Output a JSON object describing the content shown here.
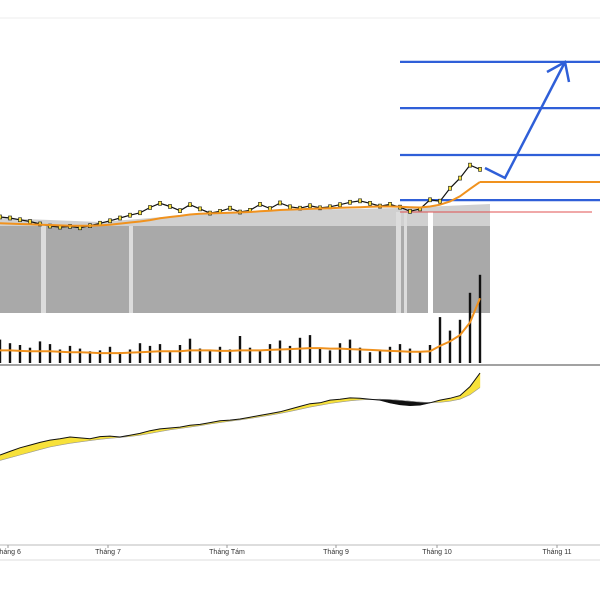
{
  "chart_data": [
    {
      "type": "line",
      "x": [
        0,
        2,
        4,
        6,
        8,
        10,
        12,
        14,
        16,
        18,
        20,
        22,
        24,
        26,
        28,
        30,
        32,
        34,
        36,
        38,
        40,
        42,
        44,
        46,
        48,
        50,
        52,
        54,
        56,
        58,
        60,
        62,
        64,
        66,
        68,
        70,
        72,
        74,
        76,
        78,
        80,
        82,
        84,
        86,
        88,
        90,
        92,
        94,
        96
      ],
      "xlim": [
        0,
        120
      ],
      "ylim": [
        0,
        100
      ],
      "series": [
        {
          "color": "#111111",
          "values": [
            42.3,
            42,
            41.5,
            41,
            40.3,
            39.7,
            39.4,
            39.6,
            39.2,
            39.8,
            40.5,
            41.2,
            42,
            42.8,
            43.5,
            45,
            46.2,
            45.3,
            44.1,
            45.8,
            44.6,
            43.4,
            43.9,
            44.8,
            43.7,
            44.2,
            45.9,
            44.7,
            46.3,
            45.2,
            44.8,
            45.5,
            44.9,
            45.2,
            45.8,
            46.5,
            46.9,
            46.2,
            45.4,
            45.9,
            45.1,
            43.9,
            44.6,
            47.2,
            46.8,
            50.5,
            53.4,
            57.1,
            55.9
          ]
        },
        {
          "color": "#f0921e",
          "values": [
            40.5,
            40.4,
            40.3,
            40.2,
            40.1,
            40,
            39.9,
            39.8,
            39.8,
            39.8,
            39.9,
            40.1,
            40.4,
            40.7,
            41,
            41.4,
            41.9,
            42.3,
            42.6,
            43,
            43.2,
            43.3,
            43.4,
            43.5,
            43.6,
            43.7,
            43.9,
            44.1,
            44.3,
            44.4,
            44.5,
            44.6,
            44.7,
            44.8,
            44.9,
            45,
            45.1,
            45.2,
            45.3,
            45.3,
            45.2,
            45.1,
            45,
            45.3,
            45.8,
            46.7,
            48.2,
            50.3,
            52.3
          ]
        }
      ],
      "levels": [
        {
          "value": 86.6,
          "color": "#2f5fd8"
        },
        {
          "value": 73.4,
          "color": "#2f5fd8"
        },
        {
          "value": 60,
          "color": "#2f5fd8"
        },
        {
          "value": 47.1,
          "color": "#2f5fd8"
        },
        {
          "value": 43.7,
          "color": "#e05050"
        }
      ]
    },
    {
      "type": "bar",
      "x": [
        0,
        2,
        4,
        6,
        8,
        10,
        12,
        14,
        16,
        18,
        20,
        22,
        24,
        26,
        28,
        30,
        32,
        34,
        36,
        38,
        40,
        42,
        44,
        46,
        48,
        50,
        52,
        54,
        56,
        58,
        60,
        62,
        64,
        66,
        68,
        70,
        72,
        74,
        76,
        78,
        80,
        82,
        84,
        86,
        88,
        90,
        92,
        94,
        96
      ],
      "xlim": [
        0,
        120
      ],
      "ylim": [
        0,
        100
      ],
      "series": [
        {
          "color": "#111111",
          "values": [
            26,
            22,
            20,
            17,
            24,
            21,
            15,
            19,
            16,
            13,
            14,
            18,
            12,
            15,
            22,
            19,
            21,
            12,
            20,
            27,
            16,
            14,
            18,
            15,
            30,
            17,
            13,
            21,
            25,
            19,
            28,
            31,
            16,
            14,
            22,
            26,
            17,
            12,
            15,
            18,
            21,
            16,
            13,
            20,
            51,
            36,
            48,
            78,
            98
          ]
        },
        {
          "color": "#f0921e",
          "values": [
            14,
            14,
            13.5,
            13,
            13,
            13,
            12.5,
            12,
            12,
            11.5,
            11,
            11,
            11,
            11.5,
            12,
            12.5,
            13,
            13,
            13,
            14,
            14,
            14,
            13.5,
            13.5,
            14,
            14,
            14,
            14.5,
            15,
            15.5,
            16,
            16.5,
            16.5,
            16,
            16,
            15.5,
            15,
            14.5,
            14,
            13.5,
            13,
            12.5,
            12.5,
            13,
            19,
            24,
            31,
            45,
            72
          ]
        }
      ]
    },
    {
      "type": "area",
      "x": [
        0,
        2,
        4,
        6,
        8,
        10,
        12,
        14,
        16,
        18,
        20,
        22,
        24,
        26,
        28,
        30,
        32,
        34,
        36,
        38,
        40,
        42,
        44,
        46,
        48,
        50,
        52,
        54,
        56,
        58,
        60,
        62,
        64,
        66,
        68,
        70,
        72,
        74,
        76,
        78,
        80,
        82,
        84,
        86,
        88,
        90,
        92,
        94,
        96
      ],
      "xlim": [
        0,
        120
      ],
      "ylim": [
        0,
        100
      ],
      "series": [
        {
          "color": "#111111",
          "values": [
            50,
            52,
            54,
            55.5,
            57,
            58.3,
            59,
            60,
            59.5,
            59,
            60.2,
            60.5,
            60,
            61,
            62,
            63.5,
            64.5,
            65,
            65.5,
            66.5,
            67,
            68,
            69,
            69.4,
            70,
            71,
            72,
            73,
            74,
            75.5,
            77,
            78.5,
            79,
            80.5,
            81,
            81.7,
            81.5,
            81,
            80.5,
            79,
            78,
            77.5,
            77.8,
            79,
            80.5,
            81.5,
            83,
            88,
            95.5
          ]
        },
        {
          "color": "#999999",
          "values": [
            47,
            48.5,
            50,
            51.5,
            53,
            54.5,
            55.5,
            56.5,
            57.3,
            58,
            58.7,
            59.3,
            59.8,
            60.3,
            61,
            62,
            63,
            64,
            64.7,
            65.5,
            66.3,
            67.2,
            68,
            68.8,
            69.5,
            70.3,
            71.2,
            72.1,
            73.1,
            74.2,
            75.4,
            76.6,
            77.6,
            78.6,
            79.4,
            80.1,
            80.6,
            80.9,
            81,
            80.8,
            80.4,
            79.9,
            79.4,
            79.1,
            79.3,
            79.9,
            81,
            83.5,
            87.5
          ]
        }
      ],
      "fill_up": "#f7e13a",
      "fill_down": "#111111",
      "xticks": [
        {
          "value": 1.6,
          "label": "Tháng 6"
        },
        {
          "value": 21.6,
          "label": "Tháng 7"
        },
        {
          "value": 45.4,
          "label": "Tháng Tám"
        },
        {
          "value": 67.2,
          "label": "Tháng 9"
        },
        {
          "value": 87.4,
          "label": "Tháng 10"
        },
        {
          "value": 111.4,
          "label": "Tháng 11"
        }
      ]
    }
  ]
}
